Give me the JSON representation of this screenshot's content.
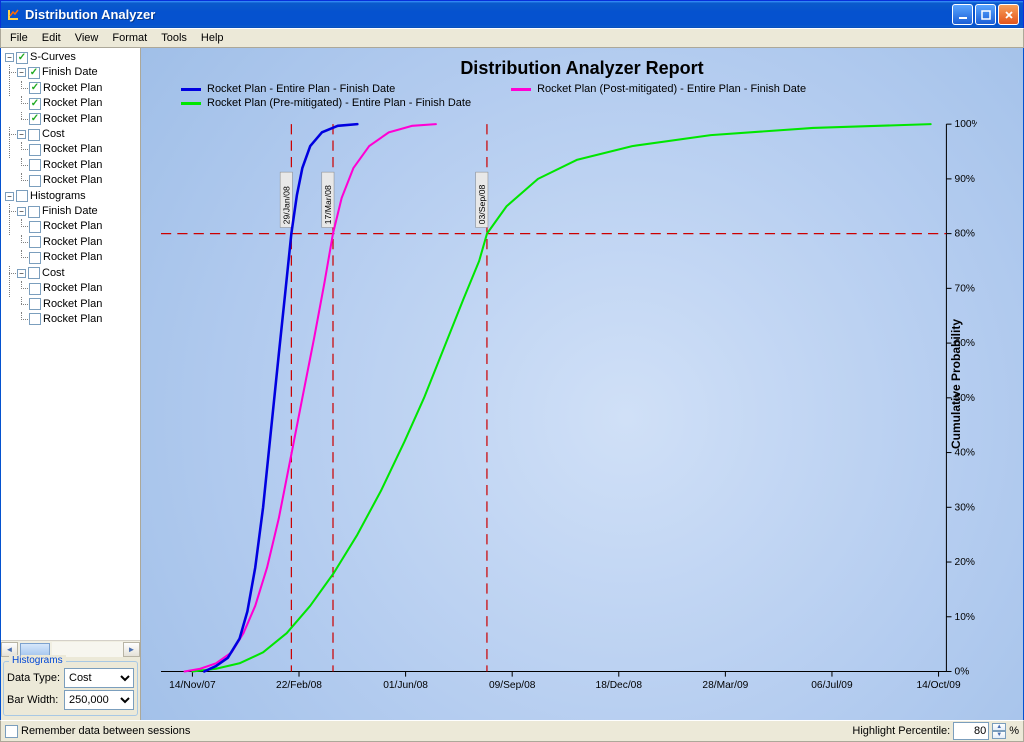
{
  "window": {
    "title": "Distribution Analyzer"
  },
  "menu": [
    "File",
    "Edit",
    "View",
    "Format",
    "Tools",
    "Help"
  ],
  "tree": {
    "scurves": {
      "label": "S-Curves",
      "checked": true,
      "finishdate": {
        "label": "Finish Date",
        "checked": true,
        "items": [
          {
            "label": "Rocket Plan",
            "checked": true
          },
          {
            "label": "Rocket Plan",
            "checked": true
          },
          {
            "label": "Rocket Plan",
            "checked": true
          }
        ]
      },
      "cost": {
        "label": "Cost",
        "checked": false,
        "items": [
          {
            "label": "Rocket Plan",
            "checked": false
          },
          {
            "label": "Rocket Plan",
            "checked": false
          },
          {
            "label": "Rocket Plan",
            "checked": false
          }
        ]
      }
    },
    "histograms": {
      "label": "Histograms",
      "checked": false,
      "finishdate": {
        "label": "Finish Date",
        "checked": false,
        "items": [
          {
            "label": "Rocket Plan",
            "checked": false
          },
          {
            "label": "Rocket Plan",
            "checked": false
          },
          {
            "label": "Rocket Plan",
            "checked": false
          }
        ]
      },
      "cost": {
        "label": "Cost",
        "checked": false,
        "items": [
          {
            "label": "Rocket Plan",
            "checked": false
          },
          {
            "label": "Rocket Plan",
            "checked": false
          },
          {
            "label": "Rocket Plan",
            "checked": false
          }
        ]
      }
    }
  },
  "hist_panel": {
    "legend": "Histograms",
    "datatype_label": "Data Type:",
    "datatype_value": "Cost",
    "barwidth_label": "Bar Width:",
    "barwidth_value": "250,000"
  },
  "chart": {
    "title": "Distribution Analyzer Report",
    "yaxis_label": "Cumulative Probability",
    "legend": [
      {
        "label": "Rocket Plan - Entire Plan - Finish Date",
        "color": "#0000e0"
      },
      {
        "label": "Rocket Plan (Post-mitigated) - Entire Plan - Finish Date",
        "color": "#ff00d4"
      },
      {
        "label": "Rocket Plan (Pre-mitigated) - Entire Plan - Finish Date",
        "color": "#00e600"
      }
    ],
    "xticks": [
      "14/Nov/07",
      "22/Feb/08",
      "01/Jun/08",
      "09/Sep/08",
      "18/Dec/08",
      "28/Mar/09",
      "06/Jul/09",
      "14/Oct/09"
    ],
    "yticks": [
      "0%",
      "10%",
      "20%",
      "30%",
      "40%",
      "50%",
      "60%",
      "70%",
      "80%",
      "90%",
      "100%"
    ],
    "highlight_pct": 80,
    "markers": [
      {
        "label": "29/Jan/08",
        "x": 0.166,
        "color": "#cc0000"
      },
      {
        "label": "17/Mar/08",
        "x": 0.219,
        "color": "#cc0000"
      },
      {
        "label": "03/Sep/08",
        "x": 0.415,
        "color": "#cc0000"
      }
    ],
    "series": {
      "blue": {
        "color": "#0000e0",
        "width": 2.5,
        "pts": [
          [
            0.055,
            0
          ],
          [
            0.07,
            0.01
          ],
          [
            0.085,
            0.025
          ],
          [
            0.1,
            0.06
          ],
          [
            0.11,
            0.11
          ],
          [
            0.12,
            0.19
          ],
          [
            0.13,
            0.3
          ],
          [
            0.14,
            0.44
          ],
          [
            0.15,
            0.58
          ],
          [
            0.158,
            0.69
          ],
          [
            0.166,
            0.8
          ],
          [
            0.173,
            0.87
          ],
          [
            0.18,
            0.92
          ],
          [
            0.19,
            0.96
          ],
          [
            0.205,
            0.985
          ],
          [
            0.225,
            0.997
          ],
          [
            0.25,
            1.0
          ]
        ]
      },
      "magenta": {
        "color": "#ff00d4",
        "width": 2,
        "pts": [
          [
            0.03,
            0
          ],
          [
            0.05,
            0.005
          ],
          [
            0.07,
            0.015
          ],
          [
            0.09,
            0.035
          ],
          [
            0.105,
            0.07
          ],
          [
            0.12,
            0.12
          ],
          [
            0.135,
            0.19
          ],
          [
            0.15,
            0.28
          ],
          [
            0.165,
            0.39
          ],
          [
            0.18,
            0.5
          ],
          [
            0.195,
            0.61
          ],
          [
            0.208,
            0.71
          ],
          [
            0.219,
            0.8
          ],
          [
            0.23,
            0.865
          ],
          [
            0.245,
            0.92
          ],
          [
            0.265,
            0.96
          ],
          [
            0.29,
            0.985
          ],
          [
            0.32,
            0.997
          ],
          [
            0.35,
            1.0
          ]
        ]
      },
      "green": {
        "color": "#00e600",
        "width": 2,
        "pts": [
          [
            0.04,
            0
          ],
          [
            0.07,
            0.005
          ],
          [
            0.1,
            0.015
          ],
          [
            0.13,
            0.035
          ],
          [
            0.16,
            0.07
          ],
          [
            0.19,
            0.12
          ],
          [
            0.22,
            0.18
          ],
          [
            0.25,
            0.25
          ],
          [
            0.28,
            0.33
          ],
          [
            0.31,
            0.42
          ],
          [
            0.335,
            0.5
          ],
          [
            0.36,
            0.59
          ],
          [
            0.385,
            0.68
          ],
          [
            0.405,
            0.75
          ],
          [
            0.415,
            0.8
          ],
          [
            0.44,
            0.85
          ],
          [
            0.48,
            0.9
          ],
          [
            0.53,
            0.935
          ],
          [
            0.6,
            0.96
          ],
          [
            0.7,
            0.98
          ],
          [
            0.83,
            0.993
          ],
          [
            0.98,
            1.0
          ]
        ]
      }
    },
    "colors": {
      "axis": "#000000",
      "highlight": "#cc0000",
      "bg_inner": "#d0e0f7",
      "bg_outer": "#a0bfe8"
    }
  },
  "statusbar": {
    "remember_label": "Remember data between sessions",
    "highlight_label": "Highlight Percentile:",
    "highlight_value": "80",
    "pct": "%"
  }
}
